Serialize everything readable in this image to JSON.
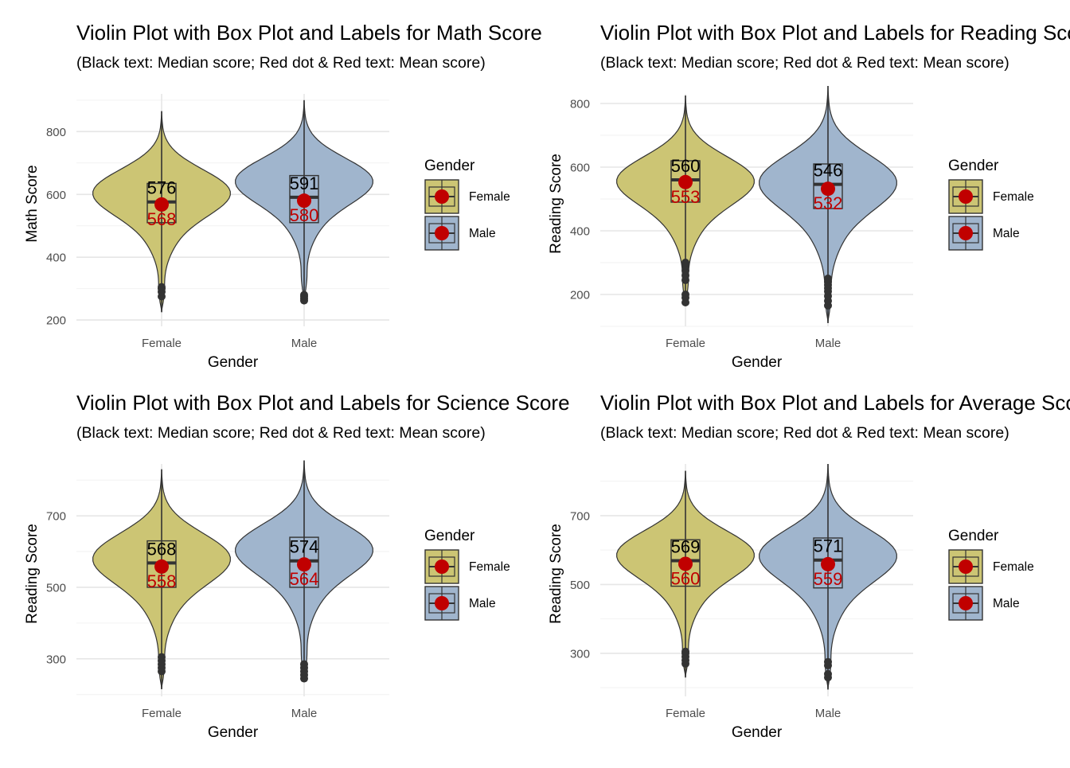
{
  "common": {
    "subtitle": "(Black text: Median score; Red dot & Red text: Mean score)",
    "xlabel": "Gender",
    "legend_title": "Gender",
    "categories": [
      "Female",
      "Male"
    ],
    "colors": {
      "Female": "#CCC574",
      "Male": "#A0B5CD",
      "mean": "#C00000",
      "median_text": "#000000"
    }
  },
  "chart_data": [
    {
      "type": "violin",
      "title": "Violin Plot with Box Plot and Labels for Math Score",
      "subtitle": "(Black text: Median score; Red dot & Red text: Mean score)",
      "xlabel": "Gender",
      "ylabel": "Math Score",
      "ylim": [
        180,
        920
      ],
      "yticks": [
        200,
        400,
        600,
        800
      ],
      "legend": {
        "title": "Gender",
        "position": "right",
        "entries": [
          "Female",
          "Male"
        ]
      },
      "series": [
        {
          "name": "Female",
          "min": 225,
          "max": 865,
          "q1": 510,
          "median": 576,
          "q3": 635,
          "mean": 568,
          "median_label": "576",
          "mean_label": "568",
          "outliers": [
            275,
            290,
            300,
            305
          ]
        },
        {
          "name": "Male",
          "min": 265,
          "max": 900,
          "q1": 510,
          "median": 591,
          "q3": 660,
          "mean": 580,
          "median_label": "591",
          "mean_label": "580",
          "outliers": [
            262,
            268,
            275,
            280
          ]
        }
      ]
    },
    {
      "type": "violin",
      "title": "Violin Plot with Box Plot and Labels for Reading Score",
      "subtitle": "(Black text: Median score; Red dot & Red text: Mean score)",
      "xlabel": "Gender",
      "ylabel": "Reading Score",
      "ylim": [
        100,
        830
      ],
      "yticks": [
        200,
        400,
        600,
        800
      ],
      "legend": {
        "title": "Gender",
        "position": "right",
        "entries": [
          "Female",
          "Male"
        ]
      },
      "series": [
        {
          "name": "Female",
          "min": 165,
          "max": 825,
          "q1": 490,
          "median": 560,
          "q3": 620,
          "mean": 553,
          "median_label": "560",
          "mean_label": "553",
          "outliers": [
            175,
            190,
            200,
            245,
            260,
            275,
            290,
            300
          ]
        },
        {
          "name": "Male",
          "min": 110,
          "max": 855,
          "q1": 470,
          "median": 546,
          "q3": 610,
          "mean": 532,
          "median_label": "546",
          "mean_label": "532",
          "outliers": [
            165,
            180,
            195,
            210,
            220,
            230,
            240,
            250
          ]
        }
      ]
    },
    {
      "type": "violin",
      "title": "Violin Plot with Box Plot and Labels for Science Score",
      "subtitle": "(Black text: Median score; Red dot & Red text: Mean score)",
      "xlabel": "Gender",
      "ylabel": "Reading Score",
      "ylim": [
        195,
        845
      ],
      "yticks": [
        300,
        500,
        700
      ],
      "legend": {
        "title": "Gender",
        "position": "right",
        "entries": [
          "Female",
          "Male"
        ]
      },
      "series": [
        {
          "name": "Female",
          "min": 215,
          "max": 830,
          "q1": 500,
          "median": 568,
          "q3": 630,
          "mean": 558,
          "median_label": "568",
          "mean_label": "558",
          "outliers": [
            265,
            275,
            285,
            295,
            305
          ]
        },
        {
          "name": "Male",
          "min": 240,
          "max": 855,
          "q1": 500,
          "median": 574,
          "q3": 640,
          "mean": 564,
          "median_label": "574",
          "mean_label": "564",
          "outliers": [
            245,
            255,
            265,
            275,
            285
          ]
        }
      ]
    },
    {
      "type": "violin",
      "title": "Violin Plot with Box Plot and Labels for Average Score",
      "subtitle": "(Black text: Median score; Red dot & Red text: Mean score)",
      "xlabel": "Gender",
      "ylabel": "Reading Score",
      "ylim": [
        175,
        850
      ],
      "yticks": [
        300,
        500,
        700
      ],
      "legend": {
        "title": "Gender",
        "position": "right",
        "entries": [
          "Female",
          "Male"
        ]
      },
      "series": [
        {
          "name": "Female",
          "min": 230,
          "max": 830,
          "q1": 495,
          "median": 569,
          "q3": 630,
          "mean": 560,
          "median_label": "569",
          "mean_label": "560",
          "outliers": [
            270,
            280,
            290,
            300,
            305
          ]
        },
        {
          "name": "Male",
          "min": 195,
          "max": 850,
          "q1": 490,
          "median": 571,
          "q3": 635,
          "mean": 559,
          "median_label": "571",
          "mean_label": "559",
          "outliers": [
            230,
            240,
            265,
            275
          ]
        }
      ]
    }
  ]
}
